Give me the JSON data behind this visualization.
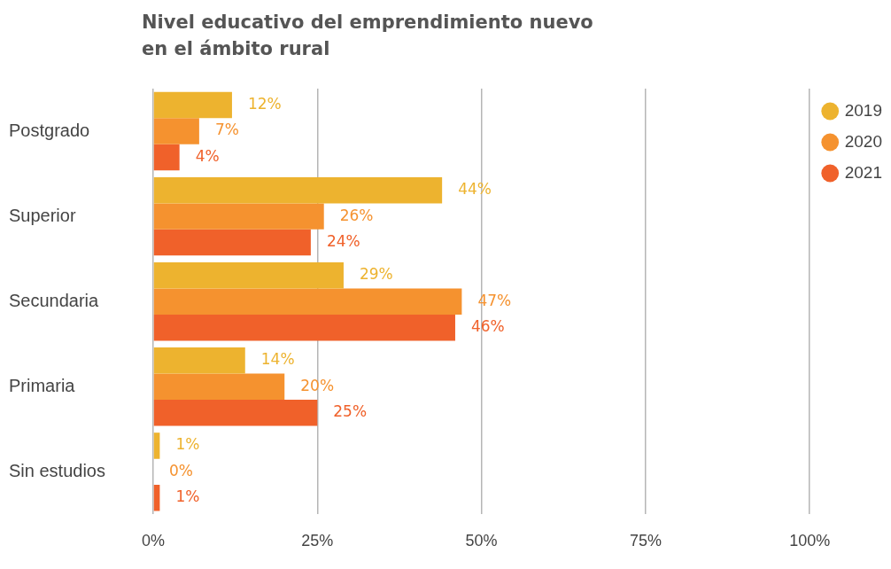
{
  "chart_data": {
    "type": "bar",
    "orientation": "horizontal",
    "title": "Nivel educativo del emprendimiento nuevo en el ámbito rural",
    "categories": [
      "Postgrado",
      "Superior",
      "Secundaria",
      "Primaria",
      "Sin estudios"
    ],
    "series": [
      {
        "name": "2019",
        "color": "#edb32f",
        "values": [
          12,
          44,
          29,
          14,
          1
        ],
        "value_labels": [
          "12%",
          "44%",
          "29%",
          "14%",
          "1%"
        ]
      },
      {
        "name": "2020",
        "color": "#f5922f",
        "values": [
          7,
          26,
          47,
          20,
          0
        ],
        "value_labels": [
          "7%",
          "26%",
          "47%",
          "20%",
          "0%"
        ]
      },
      {
        "name": "2021",
        "color": "#f0612a",
        "values": [
          4,
          24,
          46,
          25,
          1
        ],
        "value_labels": [
          "4%",
          "24%",
          "46%",
          "25%",
          "1%"
        ]
      }
    ],
    "xlim": [
      0,
      100
    ],
    "xticks": [
      {
        "value": 0,
        "label": "0%"
      },
      {
        "value": 25,
        "label": "25%"
      },
      {
        "value": 50,
        "label": "50%"
      },
      {
        "value": 75,
        "label": "75%"
      },
      {
        "value": 100,
        "label": "100%"
      }
    ],
    "grid": "x",
    "legend": "right"
  }
}
